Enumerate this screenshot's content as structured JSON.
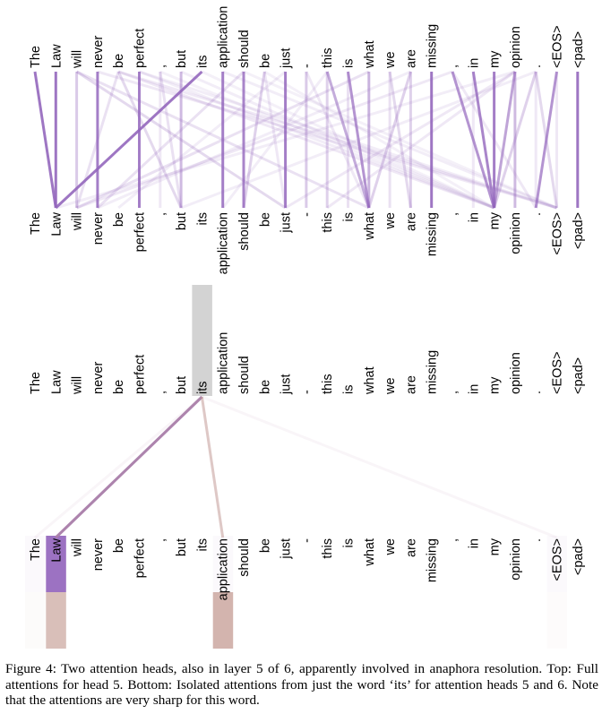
{
  "chart_data": [
    {
      "type": "attention-lines",
      "title": "Full attentions for head 5",
      "tokens": [
        "The",
        "Law",
        "will",
        "never",
        "be",
        "perfect",
        ",",
        "but",
        "its",
        "application",
        "should",
        "be",
        "just",
        "-",
        "this",
        "is",
        "what",
        "we",
        "are",
        "missing",
        ",",
        "in",
        "my",
        "opinion",
        ".",
        "<EOS>",
        "<pad>"
      ],
      "color": "#9467bd",
      "links": [
        {
          "from": 0,
          "to": 1,
          "weight": 0.9
        },
        {
          "from": 1,
          "to": 1,
          "weight": 0.9
        },
        {
          "from": 2,
          "to": 2,
          "weight": 0.35
        },
        {
          "from": 2,
          "to": 12,
          "weight": 0.25
        },
        {
          "from": 2,
          "to": 16,
          "weight": 0.2
        },
        {
          "from": 3,
          "to": 3,
          "weight": 0.85
        },
        {
          "from": 4,
          "to": 2,
          "weight": 0.2
        },
        {
          "from": 4,
          "to": 7,
          "weight": 0.25
        },
        {
          "from": 4,
          "to": 22,
          "weight": 0.15
        },
        {
          "from": 5,
          "to": 5,
          "weight": 0.85
        },
        {
          "from": 6,
          "to": 6,
          "weight": 0.15
        },
        {
          "from": 6,
          "to": 7,
          "weight": 0.2
        },
        {
          "from": 6,
          "to": 22,
          "weight": 0.1
        },
        {
          "from": 7,
          "to": 7,
          "weight": 0.45
        },
        {
          "from": 7,
          "to": 22,
          "weight": 0.12
        },
        {
          "from": 8,
          "to": 1,
          "weight": 0.9
        },
        {
          "from": 9,
          "to": 9,
          "weight": 0.85
        },
        {
          "from": 10,
          "to": 10,
          "weight": 0.8
        },
        {
          "from": 10,
          "to": 3,
          "weight": 0.2
        },
        {
          "from": 11,
          "to": 10,
          "weight": 0.3
        },
        {
          "from": 11,
          "to": 12,
          "weight": 0.15
        },
        {
          "from": 12,
          "to": 12,
          "weight": 0.85
        },
        {
          "from": 12,
          "to": 4,
          "weight": 0.12
        },
        {
          "from": 13,
          "to": 13,
          "weight": 0.35
        },
        {
          "from": 13,
          "to": 16,
          "weight": 0.15
        },
        {
          "from": 14,
          "to": 14,
          "weight": 0.3
        },
        {
          "from": 14,
          "to": 16,
          "weight": 0.55
        },
        {
          "from": 15,
          "to": 15,
          "weight": 0.2
        },
        {
          "from": 15,
          "to": 16,
          "weight": 0.7
        },
        {
          "from": 16,
          "to": 16,
          "weight": 0.5
        },
        {
          "from": 16,
          "to": 2,
          "weight": 0.2
        },
        {
          "from": 17,
          "to": 17,
          "weight": 0.2
        },
        {
          "from": 17,
          "to": 18,
          "weight": 0.25
        },
        {
          "from": 18,
          "to": 18,
          "weight": 0.3
        },
        {
          "from": 18,
          "to": 16,
          "weight": 0.3
        },
        {
          "from": 19,
          "to": 19,
          "weight": 0.9
        },
        {
          "from": 20,
          "to": 22,
          "weight": 0.7
        },
        {
          "from": 20,
          "to": 24,
          "weight": 0.15
        },
        {
          "from": 21,
          "to": 22,
          "weight": 0.8
        },
        {
          "from": 21,
          "to": 21,
          "weight": 0.15
        },
        {
          "from": 22,
          "to": 22,
          "weight": 0.85
        },
        {
          "from": 23,
          "to": 23,
          "weight": 0.45
        },
        {
          "from": 23,
          "to": 22,
          "weight": 0.6
        },
        {
          "from": 23,
          "to": 14,
          "weight": 0.15
        },
        {
          "from": 23,
          "to": 12,
          "weight": 0.15
        },
        {
          "from": 24,
          "to": 25,
          "weight": 0.25
        },
        {
          "from": 24,
          "to": 24,
          "weight": 0.15
        },
        {
          "from": 24,
          "to": 22,
          "weight": 0.3
        },
        {
          "from": 24,
          "to": 7,
          "weight": 0.12
        },
        {
          "from": 25,
          "to": 24,
          "weight": 0.7
        },
        {
          "from": 25,
          "to": 25,
          "weight": 0.15
        },
        {
          "from": 26,
          "to": 26,
          "weight": 0.9
        },
        {
          "from": 3,
          "to": 25,
          "weight": 0.15
        },
        {
          "from": 4,
          "to": 25,
          "weight": 0.15
        },
        {
          "from": 5,
          "to": 25,
          "weight": 0.12
        },
        {
          "from": 9,
          "to": 25,
          "weight": 0.12
        },
        {
          "from": 10,
          "to": 25,
          "weight": 0.1
        },
        {
          "from": 5,
          "to": 22,
          "weight": 0.12
        },
        {
          "from": 8,
          "to": 22,
          "weight": 0.1
        },
        {
          "from": 11,
          "to": 22,
          "weight": 0.1
        },
        {
          "from": 20,
          "to": 2,
          "weight": 0.15
        },
        {
          "from": 23,
          "to": 1,
          "weight": 0.12
        },
        {
          "from": 18,
          "to": 3,
          "weight": 0.12
        },
        {
          "from": 14,
          "to": 9,
          "weight": 0.12
        }
      ]
    },
    {
      "type": "attention-lines",
      "title": "Isolated attentions from 'its' for heads 5 and 6",
      "tokens": [
        "The",
        "Law",
        "will",
        "never",
        "be",
        "perfect",
        ",",
        "but",
        "its",
        "application",
        "should",
        "be",
        "just",
        "-",
        "this",
        "is",
        "what",
        "we",
        "are",
        "missing",
        ",",
        "in",
        "my",
        "opinion",
        ".",
        "<EOS>",
        "<pad>"
      ],
      "selected_token": "its",
      "selected_color": "#d3d3d3",
      "series": [
        {
          "name": "head 5",
          "color": "#9467bd",
          "weights": [
            0.02,
            0.93,
            0,
            0,
            0,
            0,
            0,
            0,
            0,
            0.01,
            0,
            0,
            0,
            0,
            0,
            0,
            0,
            0,
            0,
            0,
            0,
            0,
            0,
            0,
            0,
            0.02,
            0
          ]
        },
        {
          "name": "head 6",
          "color": "#c49c94",
          "weights": [
            0.03,
            0.45,
            0,
            0,
            0,
            0,
            0,
            0,
            0,
            0.52,
            0,
            0,
            0,
            0,
            0,
            0,
            0,
            0,
            0,
            0,
            0,
            0,
            0,
            0,
            0,
            0.02,
            0
          ]
        }
      ]
    }
  ],
  "caption": "Figure 4: Two attention heads, also in layer 5 of 6, apparently involved in anaphora resolution. Top: Full attentions for head 5. Bottom: Isolated attentions from just the word ‘its’ for attention heads 5 and 6. Note that the attentions are very sharp for this word."
}
